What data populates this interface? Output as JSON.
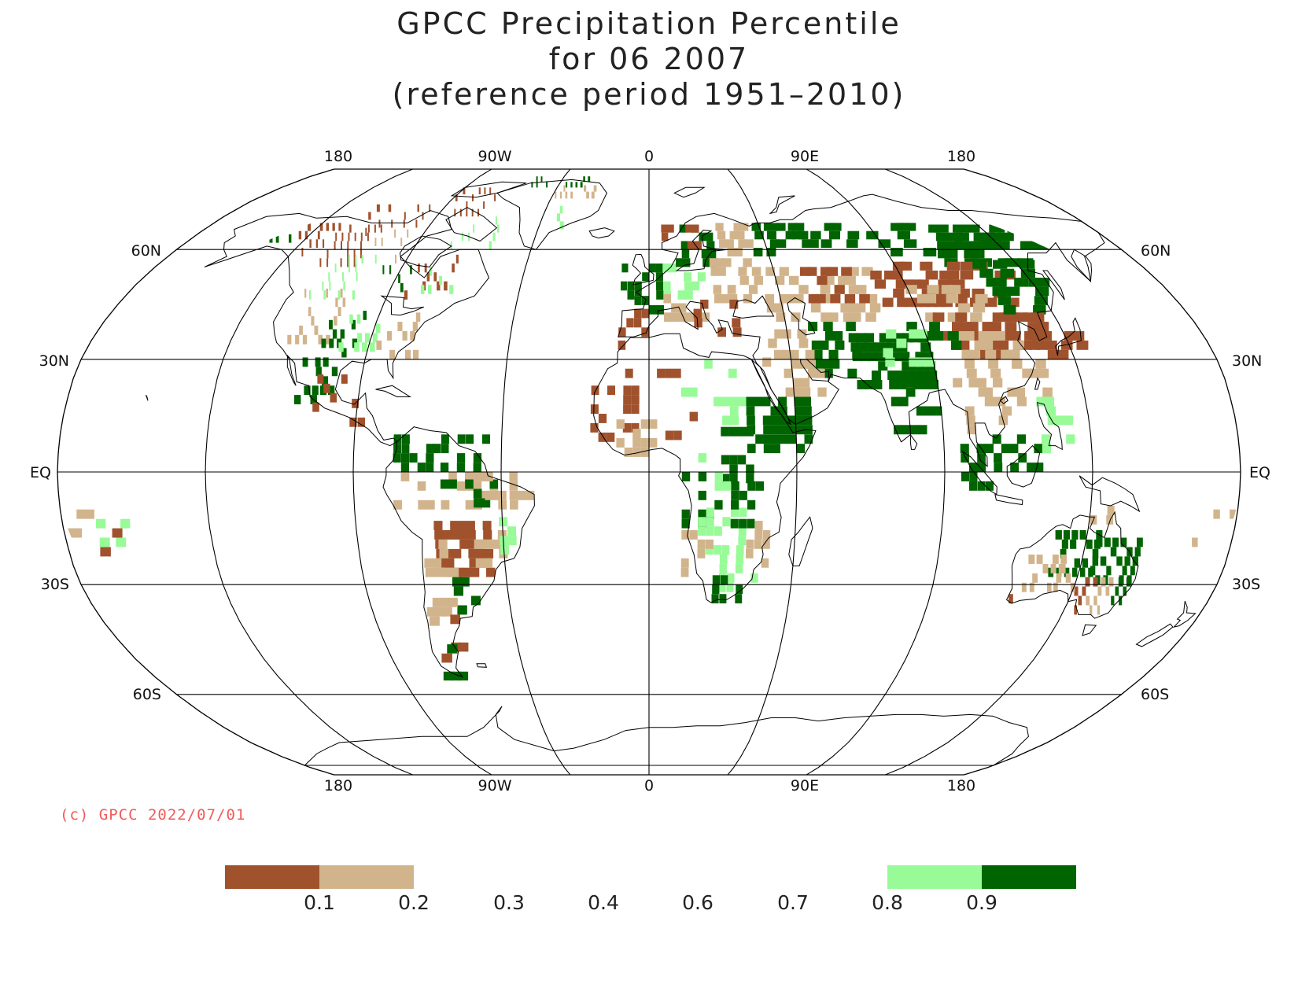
{
  "title": {
    "line1": "GPCC Precipitation Percentile",
    "line2": "for 06 2007",
    "line3": "(reference period 1951–2010)"
  },
  "map": {
    "projection": "Robinson",
    "longitude_labels_top": [
      "180",
      "90W",
      "0",
      "90E",
      "180"
    ],
    "longitude_labels_bottom": [
      "180",
      "90W",
      "0",
      "90E",
      "180"
    ],
    "latitude_labels": [
      "60N",
      "30N",
      "EQ",
      "30S",
      "60S"
    ],
    "meridians": [
      -180,
      -135,
      -90,
      -45,
      0,
      45,
      90,
      135,
      180
    ],
    "parallels": [
      60,
      30,
      0,
      -30,
      -60
    ],
    "land_outline_color": "#000000"
  },
  "legend": {
    "boxes": [
      {
        "range": "< 0.1",
        "color": "#a0522d"
      },
      {
        "range": "0.1 – 0.2",
        "color": "#d2b48c"
      },
      {
        "range": "0.2 – 0.3",
        "color": "#ffffff"
      },
      {
        "range": "0.3 – 0.4",
        "color": "#ffffff"
      },
      {
        "range": "0.4 – 0.6",
        "color": "#ffffff"
      },
      {
        "range": "0.6 – 0.7",
        "color": "#ffffff"
      },
      {
        "range": "0.7 – 0.8",
        "color": "#ffffff"
      },
      {
        "range": "0.8 – 0.9",
        "color": "#98fb98"
      },
      {
        "range": "> 0.9",
        "color": "#006400"
      }
    ],
    "ticks": [
      "0.1",
      "0.2",
      "0.3",
      "0.4",
      "0.6",
      "0.7",
      "0.8",
      "0.9"
    ]
  },
  "copyright": "(c) GPCC 2022/07/01",
  "colors": {
    "very_dry": "#a0522d",
    "dry": "#d2b48c",
    "wet": "#98fb98",
    "very_wet": "#006400",
    "copyright": "#f05a5a"
  }
}
